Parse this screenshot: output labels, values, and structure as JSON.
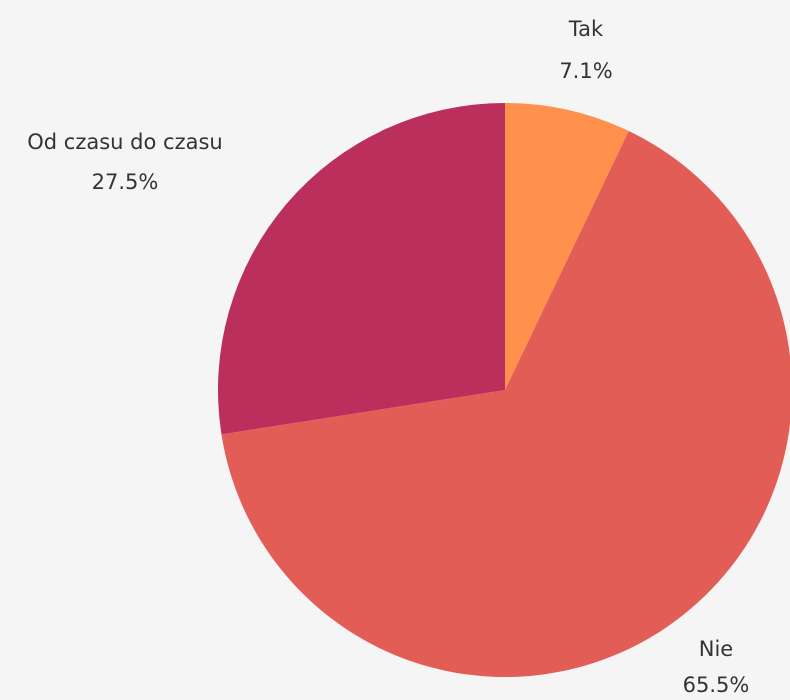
{
  "chart_data": {
    "type": "pie",
    "categories": [
      "Tak",
      "Nie",
      "Od czasu do czasu"
    ],
    "values": [
      7.1,
      65.5,
      27.5
    ],
    "value_labels": [
      "7.1%",
      "65.5%",
      "27.5%"
    ],
    "colors": [
      "#ff914d",
      "#e35d57",
      "#ba2f5c"
    ]
  }
}
